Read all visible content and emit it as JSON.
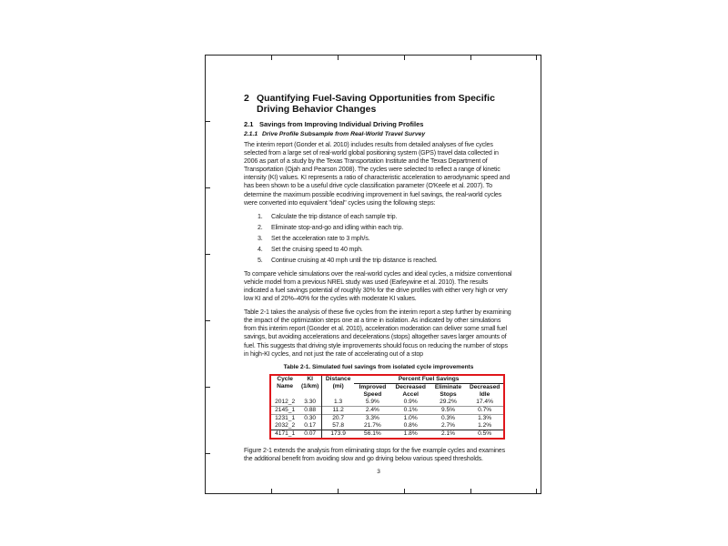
{
  "section": {
    "number": "2",
    "title": "Quantifying Fuel-Saving Opportunities from Specific Driving Behavior Changes"
  },
  "subsection": {
    "number": "2.1",
    "title": "Savings from Improving Individual Driving Profiles"
  },
  "subsubsection": {
    "number": "2.1.1",
    "title": "Drive Profile Subsample from Real-World Travel Survey"
  },
  "paragraphs": [
    "The interim report (Gonder et al. 2010) includes results from detailed analyses of five cycles selected from a large set of real-world global positioning system (GPS) travel data collected in 2006 as part of a study by the Texas Transportation Institute and the Texas Department of Transportation (Ojah and Pearson 2008). The cycles were selected to reflect a range of kinetic intensity (KI) values. KI represents a ratio of characteristic acceleration to aerodynamic speed and has been shown to be a useful drive cycle classification parameter (O'Keefe et al. 2007). To determine the maximum possible ecodriving improvement in fuel savings, the real-world cycles were converted into equivalent \"ideal\" cycles using the following steps:",
    "To compare vehicle simulations over the real-world cycles and ideal cycles, a midsize conventional vehicle model from a previous NREL study was used (Earleywine et al. 2010). The results indicated a fuel savings potential of roughly 30% for the drive profiles with either very high or very low KI and of 20%–40% for the cycles with moderate KI values.",
    "Table 2-1 takes the analysis of these five cycles from the interim report a step further by examining the impact of the optimization steps one at a time in isolation. As indicated by other simulations from this interim report (Gonder et al. 2010), acceleration moderation can deliver some small fuel savings, but avoiding accelerations and decelerations (stops) altogether saves larger amounts of fuel. This suggests that driving style improvements should focus on reducing the number of stops in high-KI cycles, and not just the rate of accelerating out of a stop",
    "Figure 2-1 extends the analysis from eliminating stops for the five example cycles and examines the additional benefit from avoiding slow and go driving below various speed thresholds."
  ],
  "steps": [
    {
      "n": "1.",
      "text": "Calculate the trip distance of each sample trip."
    },
    {
      "n": "2.",
      "text": "Eliminate stop-and-go and idling within each trip."
    },
    {
      "n": "3.",
      "text": "Set the acceleration rate to 3 mph/s."
    },
    {
      "n": "4.",
      "text": "Set the cruising speed to 40 mph."
    },
    {
      "n": "5.",
      "text": "Continue cruising at 40 mph until the trip distance is reached."
    }
  ],
  "table": {
    "caption": "Table 2-1. Simulated fuel savings from isolated cycle improvements",
    "group_header": "Percent Fuel Savings",
    "headers": [
      "Cycle Name",
      "KI (1/km)",
      "Distance (mi)",
      "Improved Speed",
      "Decreased Accel",
      "Eliminate Stops",
      "Decreased Idle"
    ],
    "rows": [
      [
        "2012_2",
        "3.30",
        "1.3",
        "5.9%",
        "0.9%",
        "29.2%",
        "17.4%"
      ],
      [
        "2145_1",
        "0.88",
        "11.2",
        "2.4%",
        "0.1%",
        "9.5%",
        "0.7%"
      ],
      [
        "1231_1",
        "0.30",
        "20.7",
        "3.3%",
        "1.0%",
        "0.3%",
        "1.3%"
      ],
      [
        "2032_2",
        "0.17",
        "57.8",
        "21.7%",
        "0.8%",
        "2.7%",
        "1.2%"
      ],
      [
        "4171_1",
        "0.07",
        "173.9",
        "56.1%",
        "1.8%",
        "2.1%",
        "0.5%"
      ]
    ],
    "highlight_color": "#e0161b"
  },
  "page_number": "3"
}
